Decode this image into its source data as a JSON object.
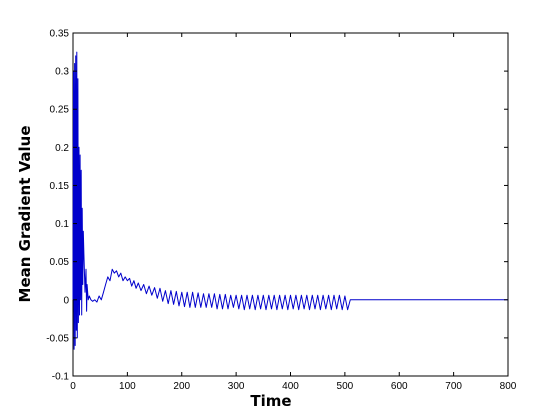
{
  "chart_data": {
    "type": "line",
    "xlabel": "Time",
    "ylabel": "Mean Gradient Value",
    "xlim": [
      0,
      800
    ],
    "ylim": [
      -0.1,
      0.35
    ],
    "xticks": [
      0,
      100,
      200,
      300,
      400,
      500,
      600,
      700,
      800
    ],
    "xtick_labels": [
      "0",
      "100",
      "200",
      "300",
      "400",
      "500",
      "600",
      "700",
      "800"
    ],
    "yticks": [
      -0.1,
      -0.05,
      0,
      0.05,
      0.1,
      0.15,
      0.2,
      0.25,
      0.3,
      0.35
    ],
    "ytick_labels": [
      "-0.1",
      "-0.05",
      "0",
      "0.05",
      "0.1",
      "0.15",
      "0.2",
      "0.25",
      "0.3",
      "0.35"
    ],
    "grid": false,
    "line_color": "#0000cc",
    "series": [
      {
        "x": [
          0,
          1,
          2,
          3,
          4,
          5,
          6,
          7,
          8,
          9,
          10,
          11,
          12,
          13,
          14,
          15,
          16,
          17,
          18,
          19,
          20,
          22,
          24,
          25,
          26,
          28,
          30,
          33,
          36,
          40,
          44,
          48,
          52,
          56,
          60,
          64,
          68,
          72,
          76,
          80,
          84,
          88,
          92,
          96,
          100,
          104,
          108,
          112,
          116,
          120,
          125,
          130,
          135,
          140,
          145,
          150,
          155,
          160,
          165,
          170,
          175,
          180,
          185,
          190,
          195,
          200,
          205,
          210,
          215,
          220,
          225,
          230,
          235,
          240,
          245,
          250,
          255,
          260,
          265,
          270,
          275,
          280,
          285,
          290,
          295,
          300,
          305,
          310,
          315,
          320,
          325,
          330,
          335,
          340,
          345,
          350,
          355,
          360,
          365,
          370,
          375,
          380,
          385,
          390,
          395,
          400,
          405,
          410,
          415,
          420,
          425,
          430,
          435,
          440,
          445,
          450,
          455,
          460,
          465,
          470,
          475,
          480,
          485,
          490,
          495,
          500,
          505,
          510,
          600,
          700,
          800
        ],
        "y": [
          0.0,
          0.3,
          -0.065,
          0.31,
          -0.06,
          0.32,
          -0.04,
          0.325,
          -0.05,
          0.29,
          -0.03,
          0.2,
          -0.02,
          0.19,
          0.0,
          0.17,
          -0.02,
          0.12,
          0.02,
          0.09,
          0.06,
          0.01,
          0.04,
          -0.015,
          0.02,
          0.0,
          0.005,
          0.0,
          -0.002,
          0.0,
          -0.003,
          0.005,
          0.0,
          0.01,
          0.02,
          0.03,
          0.025,
          0.04,
          0.035,
          0.038,
          0.03,
          0.035,
          0.025,
          0.03,
          0.025,
          0.028,
          0.018,
          0.025,
          0.015,
          0.022,
          0.012,
          0.02,
          0.008,
          0.018,
          0.006,
          0.016,
          0.002,
          0.015,
          -0.002,
          0.012,
          -0.005,
          0.012,
          -0.006,
          0.011,
          -0.008,
          0.01,
          -0.009,
          0.01,
          -0.01,
          0.01,
          -0.01,
          0.009,
          -0.01,
          0.008,
          -0.01,
          0.008,
          -0.01,
          0.008,
          -0.012,
          0.007,
          -0.012,
          0.007,
          -0.012,
          0.006,
          -0.01,
          0.006,
          -0.012,
          0.006,
          -0.013,
          0.006,
          -0.012,
          0.006,
          -0.013,
          0.006,
          -0.012,
          0.006,
          -0.013,
          0.006,
          -0.012,
          0.006,
          -0.013,
          0.006,
          -0.012,
          0.006,
          -0.013,
          0.006,
          -0.012,
          0.006,
          -0.013,
          0.006,
          -0.012,
          0.006,
          -0.013,
          0.006,
          -0.012,
          0.006,
          -0.013,
          0.006,
          -0.012,
          0.006,
          -0.013,
          0.006,
          -0.012,
          0.006,
          -0.013,
          0.005,
          -0.013,
          0.0,
          0.0,
          0.0,
          0.0
        ]
      }
    ]
  }
}
